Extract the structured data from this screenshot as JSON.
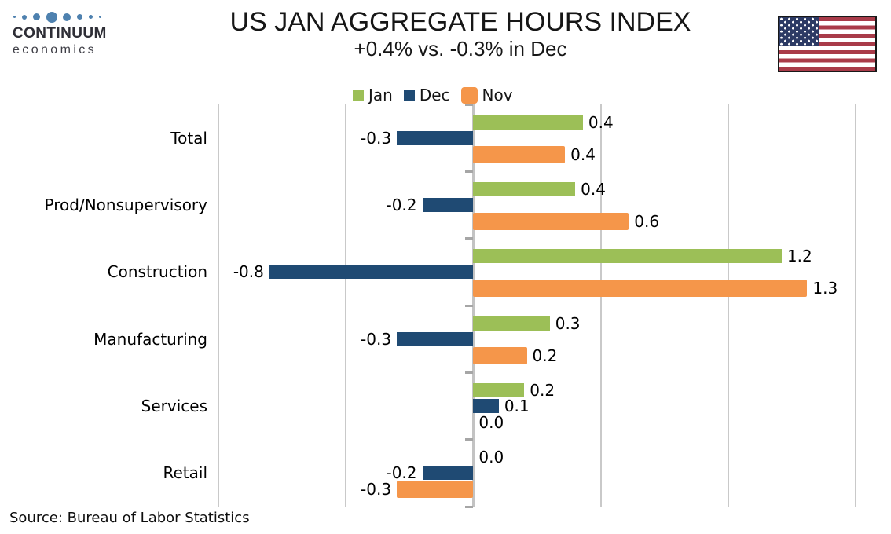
{
  "header": {
    "logo": {
      "brand": "CONTINUUM",
      "sub": "economics",
      "dot_color": "#4e81af",
      "dot_sizes": [
        3,
        6,
        9,
        14,
        10,
        7,
        5,
        3
      ]
    },
    "title": "US JAN AGGREGATE HOURS INDEX",
    "subtitle": "+0.4% vs. -0.3% in Dec",
    "flag": {
      "red": "#a93b49",
      "white": "#ffffff",
      "navy": "#2c3a64",
      "border": "#181818"
    }
  },
  "source": "Source: Bureau of Labor Statistics",
  "chart_data": {
    "type": "bar",
    "orientation": "horizontal",
    "title": "US JAN AGGREGATE HOURS INDEX",
    "subtitle": "+0.4% vs. -0.3% in Dec",
    "categories": [
      "Total",
      "Prod/Nonsupervisory",
      "Construction",
      "Manufacturing",
      "Services",
      "Retail"
    ],
    "series": [
      {
        "name": "Jan",
        "color": "#9cbf57",
        "values": [
          0.4,
          0.4,
          1.2,
          0.3,
          0.2,
          0.0
        ],
        "bar_values": [
          0.43,
          0.4,
          1.21,
          0.3,
          0.2,
          0.0
        ],
        "labels": [
          "0.4",
          "0.4",
          "1.2",
          "0.3",
          "0.2",
          "0.0"
        ]
      },
      {
        "name": "Dec",
        "color": "#1f4a73",
        "values": [
          -0.3,
          -0.2,
          -0.8,
          -0.3,
          0.1,
          -0.2
        ],
        "bar_values": [
          -0.3,
          -0.2,
          -0.8,
          -0.3,
          0.1,
          -0.2
        ],
        "labels": [
          "-0.3",
          "-0.2",
          "-0.8",
          "-0.3",
          "0.1",
          "-0.2"
        ]
      },
      {
        "name": "Nov",
        "color": "#f5964a",
        "values": [
          0.4,
          0.6,
          1.3,
          0.2,
          0.0,
          -0.3
        ],
        "bar_values": [
          0.36,
          0.61,
          1.31,
          0.21,
          0.0,
          -0.3
        ],
        "labels": [
          "0.4",
          "0.6",
          "1.3",
          "0.2",
          "0.0",
          "-0.3"
        ]
      }
    ],
    "xlim": [
      -1.0,
      1.5
    ],
    "grid_step": 0.5,
    "gridlines": true,
    "legend_position": "top",
    "value_labels": true,
    "xlabel": "",
    "ylabel": "",
    "source": "Source: Bureau of Labor Statistics",
    "grid_color": "#c9c9c9",
    "axis_color": "#c3c3c3"
  }
}
